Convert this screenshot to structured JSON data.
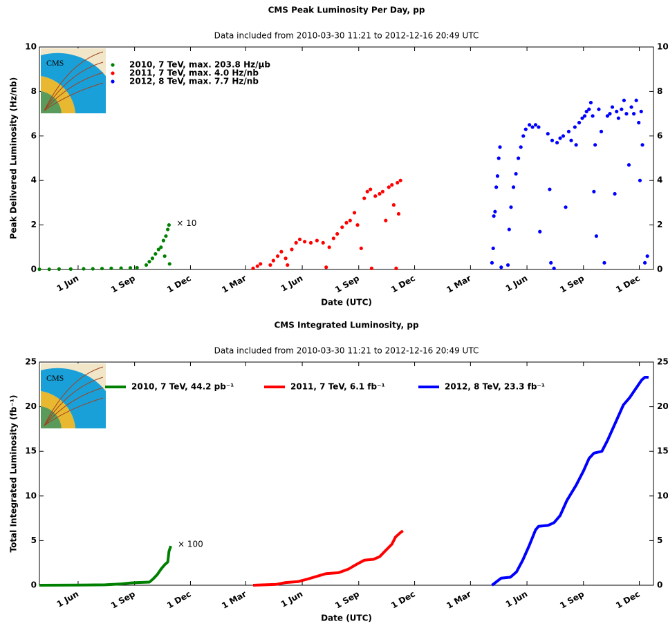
{
  "chart_data": [
    {
      "type": "scatter",
      "title": "CMS Peak Luminosity Per Day, pp",
      "subtitle": "Data included from 2010-03-30 11:21 to 2012-12-16 20:49 UTC",
      "xlabel": "Date (UTC)",
      "ylabel": "Peak Delivered Luminosity (Hz/nb)",
      "logo_text": "CMS",
      "annotation": "× 10",
      "legend": {
        "loc": "upper left",
        "ncol": 1
      },
      "xlim": [
        "2010-03-30",
        "2012-12-24"
      ],
      "ylim": [
        0,
        10
      ],
      "yticks": [
        0,
        2,
        4,
        6,
        8,
        10
      ],
      "xticks": [
        {
          "value": "2010-06-01",
          "label": "1 Jun"
        },
        {
          "value": "2010-09-01",
          "label": "1 Sep"
        },
        {
          "value": "2010-12-01",
          "label": "1 Dec"
        },
        {
          "value": "2011-03-01",
          "label": "1 Mar"
        },
        {
          "value": "2011-06-01",
          "label": "1 Jun"
        },
        {
          "value": "2011-09-01",
          "label": "1 Sep"
        },
        {
          "value": "2011-12-01",
          "label": "1 Dec"
        },
        {
          "value": "2012-03-01",
          "label": "1 Mar"
        },
        {
          "value": "2012-06-01",
          "label": "1 Jun"
        },
        {
          "value": "2012-09-01",
          "label": "1 Sep"
        },
        {
          "value": "2012-12-01",
          "label": "1 Dec"
        }
      ],
      "series": [
        {
          "name": "2010, 7 TeV, max. 203.8 Hz/μb",
          "color": "#008000",
          "x": [
            "2010-03-30",
            "2010-04-15",
            "2010-05-01",
            "2010-05-20",
            "2010-06-10",
            "2010-06-25",
            "2010-07-10",
            "2010-07-25",
            "2010-08-10",
            "2010-08-25",
            "2010-09-05",
            "2010-09-20",
            "2010-09-25",
            "2010-09-30",
            "2010-10-05",
            "2010-10-10",
            "2010-10-14",
            "2010-10-18",
            "2010-10-20",
            "2010-10-22",
            "2010-10-25",
            "2010-10-27",
            "2010-10-28"
          ],
          "values": [
            0.01,
            0.01,
            0.02,
            0.02,
            0.03,
            0.03,
            0.04,
            0.05,
            0.06,
            0.07,
            0.08,
            0.2,
            0.35,
            0.5,
            0.7,
            0.9,
            1.0,
            1.3,
            0.6,
            1.5,
            1.8,
            2.0,
            0.25
          ]
        },
        {
          "name": "2011, 7 TeV, max. 4.0 Hz/nb",
          "color": "#ff0000",
          "x": [
            "2011-03-13",
            "2011-03-20",
            "2011-03-25",
            "2011-04-10",
            "2011-04-15",
            "2011-04-22",
            "2011-04-28",
            "2011-05-05",
            "2011-05-08",
            "2011-05-15",
            "2011-05-22",
            "2011-05-28",
            "2011-06-05",
            "2011-06-15",
            "2011-06-25",
            "2011-07-05",
            "2011-07-10",
            "2011-07-15",
            "2011-07-22",
            "2011-07-28",
            "2011-08-05",
            "2011-08-12",
            "2011-08-18",
            "2011-08-25",
            "2011-08-30",
            "2011-09-05",
            "2011-09-10",
            "2011-09-15",
            "2011-09-20",
            "2011-09-22",
            "2011-09-28",
            "2011-10-05",
            "2011-10-10",
            "2011-10-15",
            "2011-10-20",
            "2011-10-25",
            "2011-10-28",
            "2011-11-01",
            "2011-11-03",
            "2011-11-05",
            "2011-11-08"
          ],
          "values": [
            0.05,
            0.15,
            0.25,
            0.2,
            0.4,
            0.6,
            0.8,
            0.5,
            0.2,
            0.9,
            1.2,
            1.35,
            1.25,
            1.2,
            1.3,
            1.2,
            0.1,
            1.0,
            1.4,
            1.6,
            1.9,
            2.1,
            2.2,
            2.55,
            2.0,
            0.95,
            3.2,
            3.5,
            3.6,
            0.05,
            3.3,
            3.4,
            3.5,
            2.2,
            3.7,
            3.8,
            2.9,
            0.05,
            3.9,
            2.5,
            4.0
          ]
        },
        {
          "name": "2012, 8 TeV, max. 7.7 Hz/nb",
          "color": "#0000ff",
          "x": [
            "2012-04-05",
            "2012-04-07",
            "2012-04-08",
            "2012-04-10",
            "2012-04-12",
            "2012-04-14",
            "2012-04-16",
            "2012-04-18",
            "2012-04-20",
            "2012-05-01",
            "2012-05-03",
            "2012-05-06",
            "2012-05-10",
            "2012-05-14",
            "2012-05-18",
            "2012-05-22",
            "2012-05-26",
            "2012-05-30",
            "2012-06-05",
            "2012-06-10",
            "2012-06-15",
            "2012-06-20",
            "2012-06-22",
            "2012-07-05",
            "2012-07-08",
            "2012-07-10",
            "2012-07-12",
            "2012-07-15",
            "2012-07-20",
            "2012-07-25",
            "2012-07-30",
            "2012-08-03",
            "2012-08-08",
            "2012-08-12",
            "2012-08-18",
            "2012-08-20",
            "2012-08-25",
            "2012-08-30",
            "2012-09-03",
            "2012-09-06",
            "2012-09-10",
            "2012-09-13",
            "2012-09-16",
            "2012-09-18",
            "2012-09-20",
            "2012-09-22",
            "2012-09-26",
            "2012-09-30",
            "2012-10-05",
            "2012-10-10",
            "2012-10-14",
            "2012-10-18",
            "2012-10-22",
            "2012-10-25",
            "2012-10-28",
            "2012-11-02",
            "2012-11-06",
            "2012-11-10",
            "2012-11-14",
            "2012-11-18",
            "2012-11-22",
            "2012-11-26",
            "2012-11-30",
            "2012-12-02",
            "2012-12-04",
            "2012-12-06",
            "2012-12-10",
            "2012-12-14"
          ],
          "values": [
            0.3,
            0.95,
            2.4,
            2.6,
            3.7,
            4.2,
            5.0,
            5.5,
            0.1,
            0.2,
            1.8,
            2.8,
            3.7,
            4.3,
            5.0,
            5.5,
            6.0,
            6.3,
            6.5,
            6.4,
            6.5,
            6.4,
            1.7,
            6.1,
            3.6,
            0.3,
            5.8,
            0.05,
            5.7,
            5.9,
            6.0,
            2.8,
            6.2,
            5.8,
            6.4,
            5.6,
            6.6,
            6.8,
            6.9,
            7.1,
            7.2,
            7.5,
            6.9,
            3.5,
            5.6,
            1.5,
            7.2,
            6.2,
            0.3,
            6.9,
            7.0,
            7.3,
            3.4,
            7.1,
            6.8,
            7.2,
            7.6,
            7.0,
            4.7,
            7.3,
            7.0,
            7.6,
            6.6,
            4.0,
            7.1,
            5.6,
            0.3,
            0.6
          ]
        }
      ]
    },
    {
      "type": "line",
      "title": "CMS Integrated Luminosity, pp",
      "subtitle": "Data included from 2010-03-30 11:21 to 2012-12-16 20:49 UTC",
      "xlabel": "Date (UTC)",
      "ylabel": "Total Integrated Luminosity (fb⁻¹)",
      "logo_text": "CMS",
      "annotation": "× 100",
      "legend": {
        "loc": "upper left",
        "ncol": 3
      },
      "xlim": [
        "2010-03-30",
        "2012-12-24"
      ],
      "ylim": [
        0,
        25
      ],
      "yticks": [
        0,
        5,
        10,
        15,
        20,
        25
      ],
      "xticks": [
        {
          "value": "2010-06-01",
          "label": "1 Jun"
        },
        {
          "value": "2010-09-01",
          "label": "1 Sep"
        },
        {
          "value": "2010-12-01",
          "label": "1 Dec"
        },
        {
          "value": "2011-03-01",
          "label": "1 Mar"
        },
        {
          "value": "2011-06-01",
          "label": "1 Jun"
        },
        {
          "value": "2011-09-01",
          "label": "1 Sep"
        },
        {
          "value": "2011-12-01",
          "label": "1 Dec"
        },
        {
          "value": "2012-03-01",
          "label": "1 Mar"
        },
        {
          "value": "2012-06-01",
          "label": "1 Jun"
        },
        {
          "value": "2012-09-01",
          "label": "1 Sep"
        },
        {
          "value": "2012-12-01",
          "label": "1 Dec"
        }
      ],
      "series": [
        {
          "name": "2010, 7 TeV, 44.2 pb⁻¹",
          "color": "#008000",
          "x": [
            "2010-03-30",
            "2010-06-01",
            "2010-07-15",
            "2010-08-10",
            "2010-08-25",
            "2010-09-05",
            "2010-09-25",
            "2010-10-01",
            "2010-10-08",
            "2010-10-14",
            "2010-10-20",
            "2010-10-25",
            "2010-10-27",
            "2010-10-30"
          ],
          "values": [
            0,
            0.02,
            0.05,
            0.15,
            0.25,
            0.3,
            0.35,
            0.7,
            1.2,
            1.8,
            2.3,
            2.6,
            3.8,
            4.4
          ]
        },
        {
          "name": "2011, 7 TeV, 6.1 fb⁻¹",
          "color": "#ff0000",
          "x": [
            "2011-03-13",
            "2011-04-01",
            "2011-04-20",
            "2011-05-05",
            "2011-05-25",
            "2011-06-10",
            "2011-06-25",
            "2011-07-10",
            "2011-07-30",
            "2011-08-15",
            "2011-08-30",
            "2011-09-10",
            "2011-09-25",
            "2011-10-05",
            "2011-10-15",
            "2011-10-25",
            "2011-10-31",
            "2011-11-08",
            "2011-11-12"
          ],
          "values": [
            0,
            0.05,
            0.1,
            0.3,
            0.4,
            0.7,
            1.0,
            1.3,
            1.4,
            1.8,
            2.4,
            2.8,
            2.9,
            3.2,
            3.9,
            4.6,
            5.4,
            5.9,
            6.1
          ]
        },
        {
          "name": "2012, 8 TeV, 23.3 fb⁻¹",
          "color": "#0000ff",
          "x": [
            "2012-04-05",
            "2012-04-20",
            "2012-05-05",
            "2012-05-15",
            "2012-05-25",
            "2012-06-05",
            "2012-06-15",
            "2012-06-20",
            "2012-07-05",
            "2012-07-15",
            "2012-07-25",
            "2012-08-05",
            "2012-08-20",
            "2012-09-01",
            "2012-09-10",
            "2012-09-18",
            "2012-10-01",
            "2012-10-10",
            "2012-10-25",
            "2012-11-05",
            "2012-11-15",
            "2012-11-25",
            "2012-12-05",
            "2012-12-10",
            "2012-12-16"
          ],
          "values": [
            0,
            0.8,
            0.9,
            1.5,
            2.8,
            4.5,
            6.2,
            6.6,
            6.7,
            7.0,
            7.8,
            9.5,
            11.2,
            12.8,
            14.2,
            14.8,
            15.0,
            16.2,
            18.5,
            20.2,
            21.0,
            22.0,
            23.0,
            23.3,
            23.3
          ]
        }
      ]
    }
  ]
}
